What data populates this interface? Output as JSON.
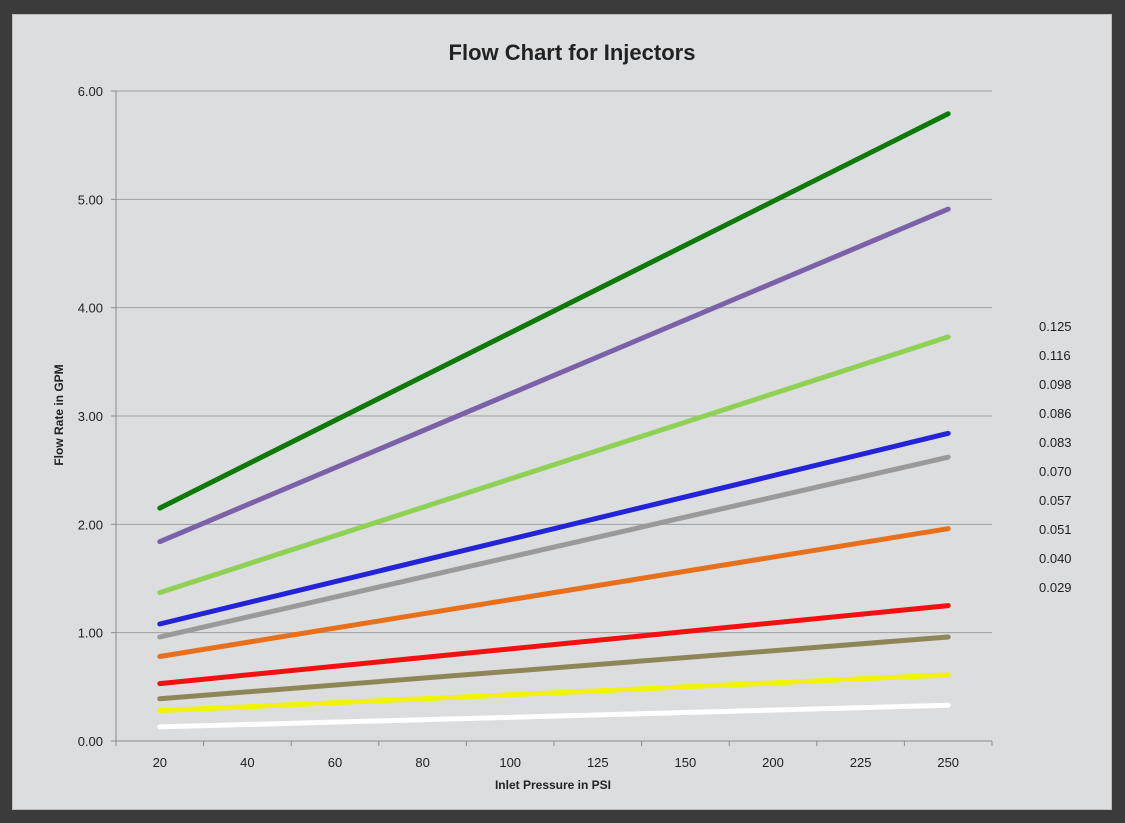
{
  "chart_data": {
    "type": "line",
    "title": "Flow Chart for Injectors",
    "xlabel": "Inlet Pressure in PSI",
    "ylabel": "Flow Rate in GPM",
    "categories": [
      "20",
      "40",
      "60",
      "80",
      "100",
      "125",
      "150",
      "200",
      "225",
      "250"
    ],
    "ylim": [
      0,
      6
    ],
    "yticks": [
      "0.00",
      "1.00",
      "2.00",
      "3.00",
      "4.00",
      "5.00",
      "6.00"
    ],
    "grid": true,
    "legend_position": "right",
    "series": [
      {
        "name": "0.125",
        "color": "#0a7a0a",
        "start": 2.15,
        "end": 5.79
      },
      {
        "name": "0.116",
        "color": "#7b62a8",
        "start": 1.84,
        "end": 4.91
      },
      {
        "name": "0.098",
        "color": "#8fd155",
        "start": 1.37,
        "end": 3.73
      },
      {
        "name": "0.086",
        "color": "#2323d8",
        "start": 1.08,
        "end": 2.84
      },
      {
        "name": "0.083",
        "color": "#9a9a9a",
        "start": 0.96,
        "end": 2.62
      },
      {
        "name": "0.070",
        "color": "#e8701a",
        "start": 0.78,
        "end": 1.96
      },
      {
        "name": "0.057",
        "color": "#f21010",
        "start": 0.53,
        "end": 1.25
      },
      {
        "name": "0.051",
        "color": "#8f8658",
        "start": 0.39,
        "end": 0.96
      },
      {
        "name": "0.040",
        "color": "#f2f20a",
        "start": 0.28,
        "end": 0.61
      },
      {
        "name": "0.029",
        "color": "#ffffff",
        "start": 0.13,
        "end": 0.33
      }
    ]
  }
}
